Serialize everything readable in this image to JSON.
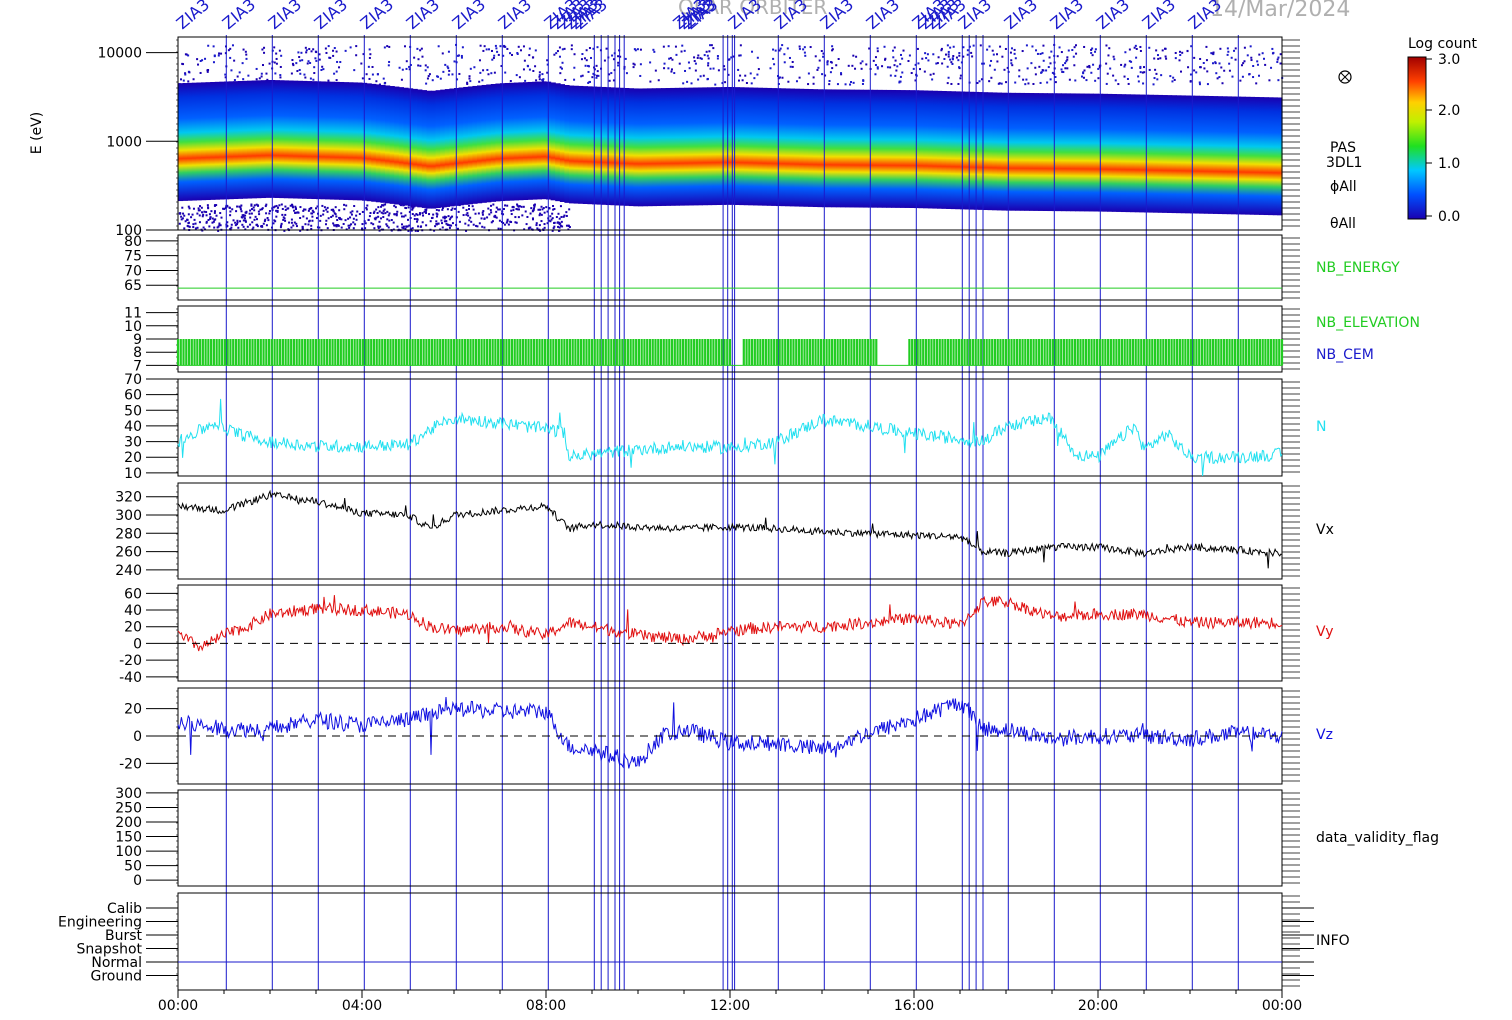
{
  "header": {
    "title_fragment": "OLAR ORBITER",
    "date": "14/Mar/2024",
    "marker_label": "ZIA3"
  },
  "colorbar": {
    "label": "Log count",
    "ticks": [
      "3.0",
      "2.0",
      "1.0",
      "0.0"
    ]
  },
  "x_axis": {
    "ticks": [
      "00:00",
      "04:00",
      "08:00",
      "12:00",
      "16:00",
      "20:00",
      "00:00"
    ]
  },
  "colors": {
    "axes": "#000000",
    "event_lines": "#1a1acc",
    "nb_energy": "#22cc22",
    "nb_elevation": "#22cc22",
    "nb_cem": "#1a1acc",
    "density": "#22e0f0",
    "vx": "#000000",
    "vy": "#e01010",
    "vz": "#1010e0"
  },
  "chart_data": [
    {
      "type": "heatmap",
      "panel": "spectrogram",
      "ylabel": "E (eV)",
      "yscale": "log",
      "ylim": [
        100,
        15000
      ],
      "y_ticks": [
        "10000",
        "1000",
        "100"
      ],
      "right_labels": [
        "PAS",
        "3DL1",
        "ϕAll",
        "θAll"
      ],
      "peak_energy_eV": {
        "x_hours": [
          0,
          2,
          4,
          5.5,
          7,
          8,
          8.5,
          10,
          12,
          14,
          16,
          18,
          20,
          22,
          24
        ],
        "values": [
          550,
          600,
          560,
          450,
          550,
          580,
          520,
          480,
          500,
          470,
          460,
          430,
          420,
          400,
          380
        ]
      }
    },
    {
      "type": "line",
      "panel": "nb_energy",
      "ylim": [
        60,
        82
      ],
      "y_ticks": [
        "80",
        "75",
        "70",
        "65"
      ],
      "series": [
        {
          "name": "NB_ENERGY",
          "x_hours": [
            0,
            24
          ],
          "values": [
            64,
            64
          ]
        }
      ]
    },
    {
      "type": "area",
      "panel": "nb_elevation",
      "ylim": [
        6.5,
        11.5
      ],
      "y_ticks": [
        "11",
        "10",
        "9",
        "8",
        "7"
      ],
      "right_labels": [
        "NB_ELEVATION",
        "NB_CEM"
      ],
      "series": [
        {
          "name": "NB_ELEVATION",
          "min": 7,
          "max": 9,
          "gaps_hours": [
            [
              12.05,
              12.3
            ],
            [
              15.2,
              15.9
            ]
          ]
        }
      ]
    },
    {
      "type": "line",
      "panel": "density",
      "ylim": [
        8,
        70
      ],
      "y_ticks": [
        "70",
        "60",
        "50",
        "40",
        "30",
        "20",
        "10"
      ],
      "series": [
        {
          "name": "N",
          "x_hours": [
            0,
            0.8,
            1.3,
            2,
            3,
            4,
            5,
            5.5,
            6,
            7,
            8,
            8.4,
            8.5,
            9,
            10,
            11,
            12,
            13,
            14,
            15,
            16,
            17.5,
            18,
            19,
            19.5,
            20,
            20.8,
            21,
            21.5,
            22,
            23,
            24
          ],
          "values": [
            30,
            42,
            35,
            30,
            27,
            27,
            28,
            38,
            45,
            42,
            38,
            36,
            20,
            22,
            25,
            27,
            26,
            30,
            44,
            40,
            35,
            30,
            40,
            45,
            22,
            20,
            40,
            25,
            35,
            20,
            20,
            22
          ]
        }
      ]
    },
    {
      "type": "line",
      "panel": "vx",
      "ylim": [
        230,
        335
      ],
      "y_ticks": [
        "320",
        "300",
        "280",
        "260",
        "240"
      ],
      "series": [
        {
          "name": "Vx",
          "x_hours": [
            0,
            1,
            2,
            3,
            4,
            5,
            5.5,
            6,
            7,
            8,
            8.5,
            9,
            10,
            11,
            12,
            13,
            14,
            15,
            16,
            17,
            17.5,
            18,
            19,
            20,
            21,
            22,
            23,
            24
          ],
          "values": [
            310,
            305,
            322,
            315,
            302,
            300,
            285,
            300,
            305,
            310,
            285,
            290,
            287,
            285,
            287,
            285,
            282,
            280,
            278,
            276,
            260,
            258,
            265,
            265,
            258,
            265,
            262,
            258
          ]
        }
      ]
    },
    {
      "type": "line",
      "panel": "vy",
      "ylim": [
        -45,
        70
      ],
      "y_ticks": [
        "60",
        "40",
        "20",
        "0",
        "-20",
        "-40"
      ],
      "series": [
        {
          "name": "Vy",
          "x_hours": [
            0,
            0.5,
            1,
            1.5,
            2,
            3,
            4,
            5,
            5.5,
            6,
            7,
            8,
            8.5,
            9,
            10,
            11,
            12,
            13,
            14,
            15,
            16,
            17,
            17.5,
            18,
            19,
            20,
            21,
            22,
            23,
            24
          ],
          "values": [
            10,
            -5,
            10,
            20,
            35,
            42,
            40,
            35,
            20,
            15,
            20,
            10,
            25,
            20,
            10,
            5,
            15,
            20,
            20,
            25,
            30,
            22,
            50,
            50,
            32,
            35,
            35,
            25,
            25,
            25
          ]
        }
      ]
    },
    {
      "type": "line",
      "panel": "vz",
      "ylim": [
        -35,
        35
      ],
      "y_ticks": [
        "20",
        "0",
        "-20"
      ],
      "series": [
        {
          "name": "Vz",
          "x_hours": [
            0,
            1,
            2,
            3,
            4,
            5,
            6,
            7,
            8,
            8.5,
            9,
            10,
            10.5,
            11,
            12,
            13,
            14,
            15,
            16,
            17,
            17.5,
            18,
            19,
            20,
            21,
            22,
            23,
            24
          ],
          "values": [
            10,
            5,
            5,
            12,
            8,
            12,
            20,
            18,
            18,
            -8,
            -10,
            -20,
            0,
            5,
            -5,
            -5,
            -10,
            2,
            12,
            25,
            5,
            5,
            -2,
            0,
            0,
            -2,
            2,
            0
          ]
        }
      ]
    },
    {
      "type": "line",
      "panel": "data_validity_flag",
      "ylim": [
        -20,
        310
      ],
      "y_ticks": [
        "300",
        "250",
        "200",
        "150",
        "100",
        "50",
        "0"
      ],
      "series": []
    },
    {
      "type": "line",
      "panel": "info",
      "y_ticks": [
        "Calib",
        "Engineering",
        "Burst",
        "Snapshot",
        "Normal",
        "Ground"
      ],
      "series": [
        {
          "name": "INFO",
          "level": "Normal"
        }
      ]
    }
  ],
  "panel_labels": {
    "nb_energy": "NB_ENERGY",
    "nb_elevation": "NB_ELEVATION",
    "nb_cem": "NB_CEM",
    "density": "N",
    "vx": "Vx",
    "vy": "Vy",
    "vz": "Vz",
    "flag": "data_validity_flag",
    "info": "INFO"
  },
  "event_markers_hours": [
    1.05,
    2.05,
    3.05,
    4.05,
    5.05,
    6.05,
    7.05,
    8.05,
    9.05,
    9.2,
    9.35,
    9.5,
    9.6,
    9.7,
    11.85,
    11.95,
    12.05,
    12.1,
    13.05,
    14.05,
    15.05,
    16.05,
    17.05,
    17.2,
    17.35,
    17.5,
    18.05,
    19.05,
    20.05,
    21.05,
    22.05,
    23.05
  ]
}
